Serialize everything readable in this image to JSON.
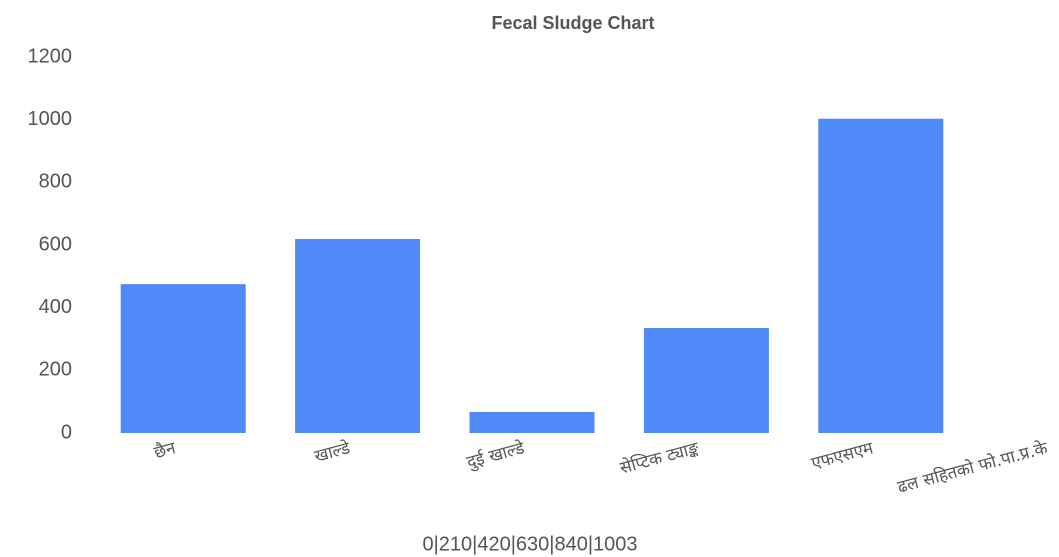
{
  "chart_data": {
    "type": "bar",
    "title": "Fecal Sludge Chart",
    "categories": [
      "छैन",
      "खाल्डे",
      "दुई खाल्डे",
      "सेप्टिक ट्याङ्क",
      "एफएसएम",
      "ढल सहितको फो.पा.प्र.के"
    ],
    "values": [
      475,
      619,
      67,
      335,
      1003,
      null
    ],
    "color": "#4f8af8",
    "ylim": [
      0,
      1200
    ],
    "yticks": [
      0,
      200,
      400,
      600,
      800,
      1000,
      1200
    ],
    "grid": false,
    "x_axis_label": "0|210|420|630|840|1003"
  }
}
